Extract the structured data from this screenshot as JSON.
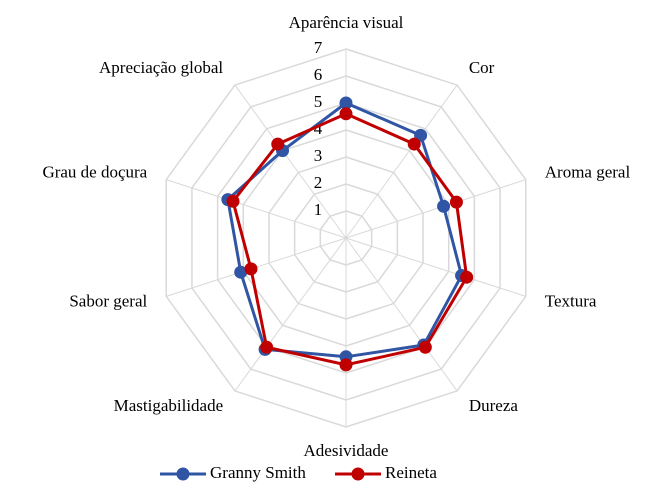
{
  "chart_data": {
    "type": "radar",
    "categories": [
      "Aparência visual",
      "Cor",
      "Aroma geral",
      "Textura",
      "Dureza",
      "Adesividade",
      "Mastigabilidade",
      "Sabor geral",
      "Grau de doçura",
      "Apreciação global"
    ],
    "series": [
      {
        "name": "Granny Smith",
        "color": "#2f55a4",
        "values": [
          5.0,
          4.7,
          3.8,
          4.5,
          4.9,
          4.4,
          5.1,
          4.1,
          4.6,
          4.0
        ]
      },
      {
        "name": "Reineta",
        "color": "#c00000",
        "values": [
          4.6,
          4.3,
          4.3,
          4.7,
          5.0,
          4.7,
          5.0,
          3.7,
          4.4,
          4.3
        ]
      }
    ],
    "ylim": [
      0,
      7
    ],
    "yticks": [
      1,
      2,
      3,
      4,
      5,
      6,
      7
    ],
    "grid": true,
    "legend": "bottom"
  }
}
